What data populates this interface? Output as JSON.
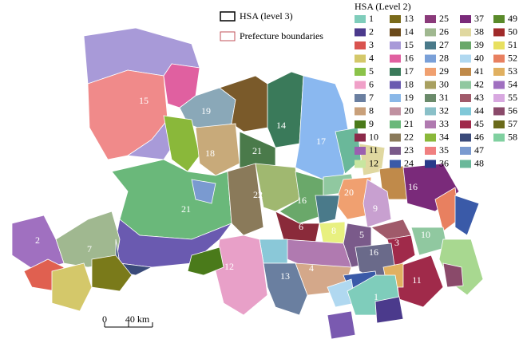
{
  "outline_legend": {
    "items": [
      "HSA (level 3)",
      "Prefecture boundaries"
    ]
  },
  "level2_legend": {
    "title": "HSA (Level 2)",
    "items": [
      {
        "label": "1",
        "color": "#7fcdbb"
      },
      {
        "label": "2",
        "color": "#4b3a8c"
      },
      {
        "label": "3",
        "color": "#d9534f"
      },
      {
        "label": "4",
        "color": "#d4c86a"
      },
      {
        "label": "5",
        "color": "#8bc34a"
      },
      {
        "label": "6",
        "color": "#f0a0c8"
      },
      {
        "label": "7",
        "color": "#6a7fa0"
      },
      {
        "label": "8",
        "color": "#c9a07a"
      },
      {
        "label": "9",
        "color": "#4a7a1a"
      },
      {
        "label": "10",
        "color": "#8b2a4a"
      },
      {
        "label": "11",
        "color": "#9b5fb0"
      },
      {
        "label": "12",
        "color": "#c8e6a0"
      },
      {
        "label": "13",
        "color": "#7a6a1a"
      },
      {
        "label": "14",
        "color": "#6b4a1a"
      },
      {
        "label": "15",
        "color": "#a89ad8"
      },
      {
        "label": "16",
        "color": "#e060a0"
      },
      {
        "label": "17",
        "color": "#3a7a5a"
      },
      {
        "label": "18",
        "color": "#6a5ab0"
      },
      {
        "label": "19",
        "color": "#8ab8e8"
      },
      {
        "label": "20",
        "color": "#c090a0"
      },
      {
        "label": "21",
        "color": "#6ab87a"
      },
      {
        "label": "22",
        "color": "#8a7a5a"
      },
      {
        "label": "23",
        "color": "#7a5a8a"
      },
      {
        "label": "24",
        "color": "#3a5aa8"
      },
      {
        "label": "25",
        "color": "#8a3a7a"
      },
      {
        "label": "26",
        "color": "#a0b890"
      },
      {
        "label": "27",
        "color": "#4a7a8a"
      },
      {
        "label": "28",
        "color": "#7aa0d8"
      },
      {
        "label": "29",
        "color": "#f0a070"
      },
      {
        "label": "30",
        "color": "#a8a060"
      },
      {
        "label": "31",
        "color": "#6a8a6a"
      },
      {
        "label": "32",
        "color": "#8ac0c8"
      },
      {
        "label": "33",
        "color": "#b07ab0"
      },
      {
        "label": "34",
        "color": "#8ab83a"
      },
      {
        "label": "35",
        "color": "#f08080"
      },
      {
        "label": "36",
        "color": "#2a3a8a"
      },
      {
        "label": "37",
        "color": "#7a2a7a"
      },
      {
        "label": "38",
        "color": "#e0d8a0"
      },
      {
        "label": "39",
        "color": "#6aa86a"
      },
      {
        "label": "40",
        "color": "#b0d8f0"
      },
      {
        "label": "41",
        "color": "#c08a4a"
      },
      {
        "label": "42",
        "color": "#90c8a0"
      },
      {
        "label": "43",
        "color": "#a05a6a"
      },
      {
        "label": "44",
        "color": "#80c8d8"
      },
      {
        "label": "45",
        "color": "#a02a4a"
      },
      {
        "label": "46",
        "color": "#3a4a7a"
      },
      {
        "label": "47",
        "color": "#7a9ad0"
      },
      {
        "label": "48",
        "color": "#6ab89a"
      },
      {
        "label": "49",
        "color": "#5a8a2a"
      },
      {
        "label": "50",
        "color": "#a02a2a"
      },
      {
        "label": "51",
        "color": "#e8e060"
      },
      {
        "label": "52",
        "color": "#e88060"
      },
      {
        "label": "53",
        "color": "#e0b060"
      },
      {
        "label": "54",
        "color": "#a070c0"
      },
      {
        "label": "55",
        "color": "#d8a8e0"
      },
      {
        "label": "56",
        "color": "#8a4a6a"
      },
      {
        "label": "57",
        "color": "#6a6a1a"
      },
      {
        "label": "58",
        "color": "#80d0a0"
      }
    ]
  },
  "region_labels": [
    "15",
    "19",
    "14",
    "17",
    "18",
    "21",
    "22",
    "21",
    "20",
    "16",
    "9",
    "16",
    "6",
    "8",
    "5",
    "3",
    "16",
    "10",
    "11",
    "12",
    "13",
    "4",
    "1",
    "7",
    "2"
  ],
  "scale_bar": {
    "labels": [
      "0",
      "40 km"
    ]
  }
}
